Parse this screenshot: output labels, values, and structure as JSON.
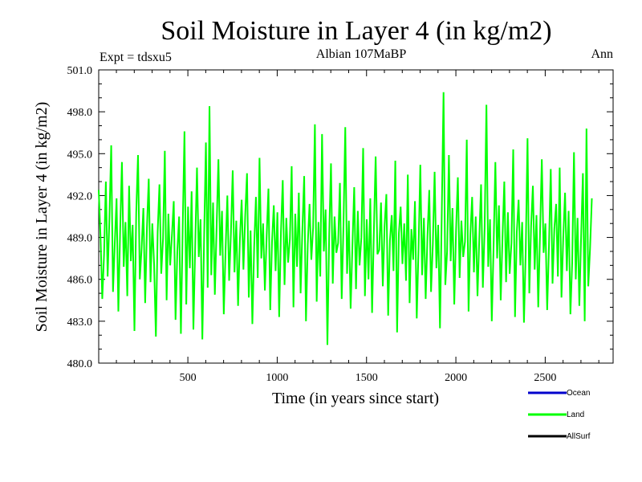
{
  "chart_data": {
    "type": "line",
    "title": "Soil Moisture in Layer 4 (in kg/m2)",
    "subtitle": "Albian   107MaBP",
    "experiment_label": "Expt = tdsxu5",
    "season_label": "Ann",
    "xlabel": "Time (in years since start)",
    "ylabel": "Soil Moisture in Layer 4 (in kg/m2)",
    "xlim": [
      1,
      2880
    ],
    "ylim": [
      480.0,
      501.0
    ],
    "x_ticks": [
      500,
      1000,
      1500,
      2000,
      2500
    ],
    "x_tick_labels": [
      "500",
      "1000",
      "1500",
      "2000",
      "2500"
    ],
    "y_ticks": [
      480.0,
      483.0,
      486.0,
      489.0,
      492.0,
      495.0,
      498.0,
      501.0
    ],
    "y_tick_labels": [
      "480.0",
      "483.0",
      "486.0",
      "489.0",
      "492.0",
      "495.0",
      "498.0",
      "501.0"
    ],
    "grid": false,
    "legend_position": "bottom-right",
    "series": [
      {
        "name": "Ocean",
        "color": "#0000cc",
        "values": []
      },
      {
        "name": "Land",
        "color": "#00ff00",
        "x_start": 1,
        "x_step": 10,
        "values": [
          492.4,
          489.1,
          484.6,
          487.8,
          493.0,
          486.2,
          490.4,
          495.6,
          485.1,
          488.6,
          491.8,
          483.7,
          489.5,
          494.4,
          486.9,
          490.1,
          484.8,
          492.7,
          487.3,
          489.9,
          482.3,
          490.8,
          494.9,
          486.0,
          488.2,
          491.1,
          484.3,
          489.7,
          493.2,
          485.8,
          490.0,
          487.1,
          481.9,
          489.4,
          492.8,
          486.4,
          488.9,
          495.2,
          484.5,
          490.7,
          487.0,
          489.2,
          491.6,
          483.1,
          488.0,
          490.5,
          482.1,
          489.6,
          496.6,
          484.2,
          491.2,
          486.8,
          492.3,
          482.4,
          488.4,
          494.0,
          487.6,
          490.3,
          481.7,
          489.0,
          495.8,
          485.4,
          498.4,
          486.3,
          491.5,
          484.9,
          489.8,
          494.6,
          487.7,
          490.9,
          483.5,
          488.1,
          492.0,
          485.9,
          489.3,
          493.8,
          486.5,
          490.2,
          484.1,
          488.8,
          491.7,
          486.7,
          490.6,
          493.6,
          484.7,
          489.5,
          482.8,
          488.3,
          491.9,
          486.1,
          494.7,
          487.5,
          490.0,
          485.2,
          489.1,
          492.5,
          483.8,
          488.7,
          491.3,
          486.6,
          490.8,
          483.3,
          489.4,
          493.1,
          485.6,
          490.4,
          487.2,
          488.9,
          494.1,
          484.0,
          490.7,
          486.9,
          492.2,
          485.0,
          489.6,
          493.4,
          483.0,
          488.5,
          491.4,
          487.4,
          489.7,
          497.1,
          484.4,
          490.1,
          486.2,
          496.4,
          488.0,
          491.0,
          481.3,
          489.2,
          494.3,
          485.7,
          490.5,
          487.9,
          488.6,
          492.9,
          484.6,
          489.9,
          496.9,
          486.4,
          490.2,
          483.9,
          488.4,
          492.6,
          485.3,
          490.9,
          487.0,
          489.0,
          495.4,
          484.8,
          490.3,
          486.0,
          491.8,
          483.6,
          489.4,
          494.8,
          487.8,
          488.1,
          491.5,
          485.5,
          489.8,
          492.1,
          483.4,
          488.8,
          490.6,
          486.6,
          494.5,
          482.2,
          489.3,
          491.2,
          487.1,
          490.0,
          485.9,
          493.5,
          484.3,
          489.6,
          487.4,
          491.6,
          483.2,
          488.2,
          494.2,
          486.3,
          490.4,
          484.6,
          489.1,
          492.4,
          485.1,
          488.5,
          493.7,
          486.8,
          489.9,
          482.5,
          490.7,
          499.4,
          485.6,
          488.0,
          494.9,
          487.3,
          491.1,
          484.2,
          489.5,
          493.3,
          486.1,
          490.2,
          487.6,
          488.7,
          496.0,
          483.7,
          489.2,
          491.9,
          486.5,
          490.5,
          484.8,
          488.9,
          492.8,
          485.4,
          489.7,
          498.5,
          486.9,
          490.3,
          483.0,
          488.3,
          494.4,
          487.5,
          491.3,
          484.5,
          489.0,
          493.0,
          485.8,
          490.8,
          486.4,
          488.6,
          495.3,
          483.3,
          489.4,
          491.7,
          487.0,
          490.1,
          482.9,
          488.1,
          496.1,
          485.0,
          489.8,
          492.7,
          486.7,
          490.6,
          484.0,
          489.3,
          494.6,
          487.9,
          490.0,
          483.8,
          488.4,
          493.9,
          485.7,
          489.6,
          491.4,
          486.2,
          494.0,
          484.7,
          489.0,
          492.2,
          486.6,
          490.9,
          483.5,
          487.2,
          495.1,
          486.0,
          490.4,
          484.1,
          489.1,
          493.6,
          483.0,
          496.8,
          485.5,
          488.2,
          491.8
        ]
      },
      {
        "name": "AllSurf",
        "color": "#000000",
        "values": []
      }
    ]
  }
}
